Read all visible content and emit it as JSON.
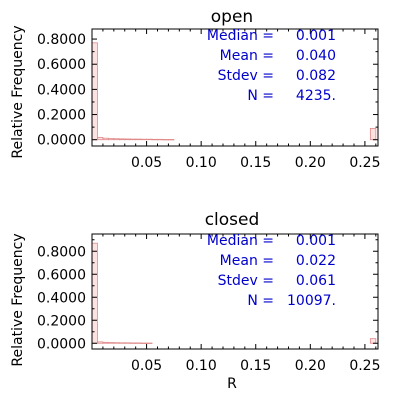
{
  "chart_data": [
    {
      "type": "bar",
      "title": "open",
      "xlabel": "",
      "ylabel": "Relative Frequency",
      "xlim": [
        0,
        0.262
      ],
      "ylim": [
        -0.05,
        0.88
      ],
      "x_ticks": [
        {
          "value": 0.05,
          "label": "0.05"
        },
        {
          "value": 0.1,
          "label": "0.10"
        },
        {
          "value": 0.15,
          "label": "0.15"
        },
        {
          "value": 0.2,
          "label": "0.20"
        },
        {
          "value": 0.25,
          "label": "0.25"
        }
      ],
      "y_ticks": [
        {
          "value": 0.0,
          "label": "0.0000"
        },
        {
          "value": 0.2,
          "label": "0.2000"
        },
        {
          "value": 0.4,
          "label": "0.4000"
        },
        {
          "value": 0.6,
          "label": "0.6000"
        },
        {
          "value": 0.8,
          "label": "0.8000"
        }
      ],
      "bin_width": 0.005,
      "bins": [
        {
          "x": 0.0,
          "y": 0.77
        },
        {
          "x": 0.005,
          "y": 0.018
        },
        {
          "x": 0.01,
          "y": 0.012
        },
        {
          "x": 0.015,
          "y": 0.009
        },
        {
          "x": 0.02,
          "y": 0.008
        },
        {
          "x": 0.025,
          "y": 0.007
        },
        {
          "x": 0.03,
          "y": 0.006
        },
        {
          "x": 0.035,
          "y": 0.005
        },
        {
          "x": 0.04,
          "y": 0.005
        },
        {
          "x": 0.045,
          "y": 0.004
        },
        {
          "x": 0.05,
          "y": 0.004
        },
        {
          "x": 0.055,
          "y": 0.003
        },
        {
          "x": 0.06,
          "y": 0.003
        },
        {
          "x": 0.065,
          "y": 0.002
        },
        {
          "x": 0.07,
          "y": 0.002
        },
        {
          "x": 0.255,
          "y": 0.09
        }
      ],
      "stats": [
        {
          "label": "Median =",
          "value": "0.001"
        },
        {
          "label": "Mean =",
          "value": "0.040"
        },
        {
          "label": "Stdev =",
          "value": "0.082"
        },
        {
          "label": "N =",
          "value": "4235."
        }
      ]
    },
    {
      "type": "bar",
      "title": "closed",
      "xlabel": "R",
      "ylabel": "Relative Frequency",
      "xlim": [
        0,
        0.262
      ],
      "ylim": [
        -0.05,
        0.95
      ],
      "x_ticks": [
        {
          "value": 0.05,
          "label": "0.05"
        },
        {
          "value": 0.1,
          "label": "0.10"
        },
        {
          "value": 0.15,
          "label": "0.15"
        },
        {
          "value": 0.2,
          "label": "0.20"
        },
        {
          "value": 0.25,
          "label": "0.25"
        }
      ],
      "y_ticks": [
        {
          "value": 0.0,
          "label": "0.0000"
        },
        {
          "value": 0.2,
          "label": "0.2000"
        },
        {
          "value": 0.4,
          "label": "0.4000"
        },
        {
          "value": 0.6,
          "label": "0.6000"
        },
        {
          "value": 0.8,
          "label": "0.8000"
        }
      ],
      "bin_width": 0.005,
      "bins": [
        {
          "x": 0.0,
          "y": 0.87
        },
        {
          "x": 0.005,
          "y": 0.012
        },
        {
          "x": 0.01,
          "y": 0.008
        },
        {
          "x": 0.015,
          "y": 0.006
        },
        {
          "x": 0.02,
          "y": 0.005
        },
        {
          "x": 0.025,
          "y": 0.004
        },
        {
          "x": 0.03,
          "y": 0.004
        },
        {
          "x": 0.035,
          "y": 0.003
        },
        {
          "x": 0.04,
          "y": 0.003
        },
        {
          "x": 0.045,
          "y": 0.002
        },
        {
          "x": 0.05,
          "y": 0.002
        },
        {
          "x": 0.255,
          "y": 0.04
        }
      ],
      "stats": [
        {
          "label": "Median =",
          "value": "0.001"
        },
        {
          "label": "Mean =",
          "value": "0.022"
        },
        {
          "label": "Stdev =",
          "value": "0.061"
        },
        {
          "label": "N =",
          "value": "10097."
        }
      ]
    }
  ],
  "colors": {
    "bar_fill": "#fde2e2",
    "bar_stroke": "#e08a8a",
    "stats_text": "#0000cc",
    "axis": "#000000"
  }
}
